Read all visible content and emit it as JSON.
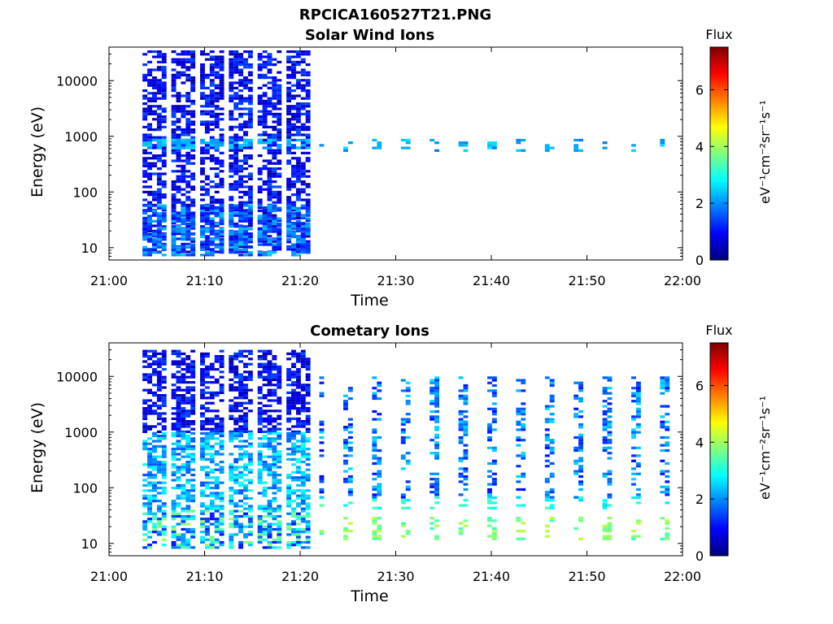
{
  "figure": {
    "title": "RPCICA160527T21.PNG"
  },
  "colorbar": {
    "label": "Flux",
    "unit_label": "eV⁻¹cm⁻²sr⁻¹s⁻¹",
    "range": [
      0,
      7.5
    ],
    "ticks": [
      "0",
      "2",
      "4",
      "6"
    ],
    "colormap": "jet"
  },
  "chart_data": [
    {
      "type": "heatmap",
      "title": "Solar Wind Ions",
      "xlabel": "Time",
      "ylabel": "Energy (eV)",
      "x_ticks": [
        "21:00",
        "21:10",
        "21:20",
        "21:30",
        "21:40",
        "21:50",
        "22:00"
      ],
      "x_range": [
        "21:00",
        "22:00"
      ],
      "y_scale": "log",
      "y_ticks": [
        "10",
        "100",
        "1000",
        "10000"
      ],
      "y_range": [
        6,
        40000
      ],
      "z_range": [
        0,
        7.5
      ],
      "series": [
        {
          "name": "",
          "time_range": [
            "21:03",
            "21:21"
          ],
          "energy_range": [
            8,
            35000
          ],
          "flux_range": [
            0.3,
            1.5
          ]
        },
        {
          "name": "",
          "time_range": [
            "21:03",
            "21:21"
          ],
          "energy_range": [
            600,
            900
          ],
          "flux_range": [
            2.0,
            2.6
          ]
        },
        {
          "name": "",
          "time_range": [
            "21:03",
            "21:21"
          ],
          "energy_range": [
            7,
            60
          ],
          "flux_range": [
            1.0,
            2.4
          ]
        },
        {
          "name": "",
          "time_range": [
            "21:22",
            "21:58"
          ],
          "energy_range": [
            550,
            900
          ],
          "flux_range": [
            1.8,
            2.6
          ]
        }
      ]
    },
    {
      "type": "heatmap",
      "title": "Cometary Ions",
      "xlabel": "Time",
      "ylabel": "Energy (eV)",
      "x_ticks": [
        "21:00",
        "21:10",
        "21:20",
        "21:30",
        "21:40",
        "21:50",
        "22:00"
      ],
      "x_range": [
        "21:00",
        "22:00"
      ],
      "y_scale": "log",
      "y_ticks": [
        "10",
        "100",
        "1000",
        "10000"
      ],
      "y_range": [
        6,
        40000
      ],
      "z_range": [
        0,
        7.5
      ],
      "series": [
        {
          "name": "",
          "time_range": [
            "21:03",
            "21:21"
          ],
          "energy_range": [
            1000,
            30000
          ],
          "flux_range": [
            0.3,
            1.5
          ]
        },
        {
          "name": "",
          "time_range": [
            "21:03",
            "21:21"
          ],
          "energy_range": [
            40,
            1000
          ],
          "flux_range": [
            1.5,
            3.0
          ]
        },
        {
          "name": "",
          "time_range": [
            "21:03",
            "21:21"
          ],
          "energy_range": [
            8,
            40
          ],
          "flux_range": [
            1.0,
            4.0
          ]
        },
        {
          "name": "",
          "time_range": [
            "21:22",
            "21:59"
          ],
          "energy_range": [
            45,
            70
          ],
          "flux_range": [
            2.5,
            3.5
          ]
        },
        {
          "name": "",
          "time_range": [
            "21:22",
            "21:59"
          ],
          "energy_range": [
            12,
            30
          ],
          "flux_range": [
            3.2,
            4.3
          ]
        },
        {
          "name": "",
          "time_range": [
            "21:22",
            "21:59"
          ],
          "energy_range": [
            70,
            10000
          ],
          "flux_range": [
            1.0,
            2.6
          ]
        }
      ]
    }
  ]
}
